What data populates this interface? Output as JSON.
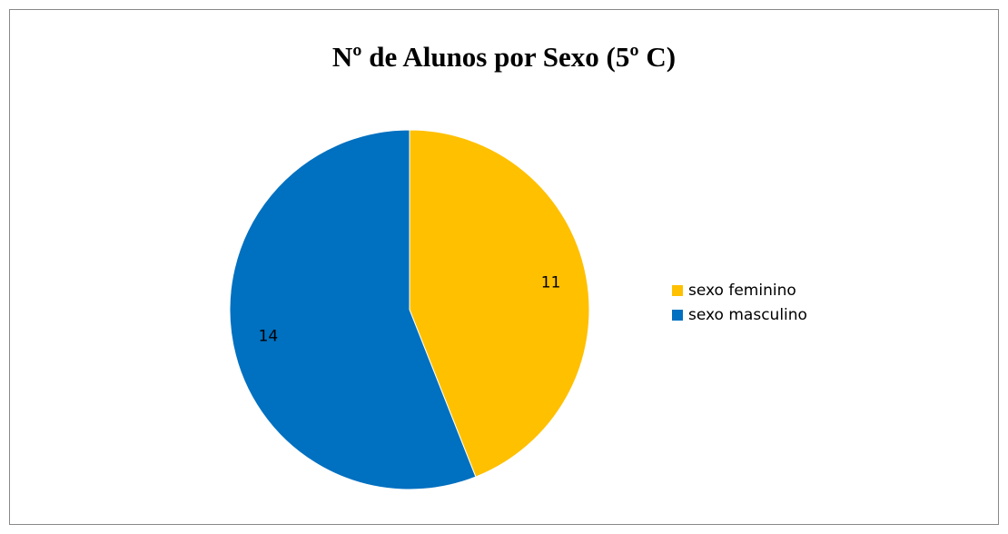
{
  "chart_data": {
    "type": "pie",
    "title": "Nº de Alunos por Sexo (5º C)",
    "categories": [
      "sexo feminino",
      "sexo masculino"
    ],
    "values": [
      11,
      14
    ],
    "colors": [
      "#FFC000",
      "#0070C0"
    ],
    "legend": "right"
  }
}
